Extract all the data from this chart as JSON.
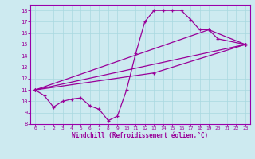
{
  "xlabel": "Windchill (Refroidissement éolien,°C)",
  "bg_color": "#cdeaf0",
  "grid_color": "#a8d8e0",
  "line_color": "#990099",
  "spine_color": "#9900aa",
  "xlim": [
    -0.5,
    23.5
  ],
  "ylim": [
    8,
    18.5
  ],
  "xticks": [
    0,
    1,
    2,
    3,
    4,
    5,
    6,
    7,
    8,
    9,
    10,
    11,
    12,
    13,
    14,
    15,
    16,
    17,
    18,
    19,
    20,
    21,
    22,
    23
  ],
  "yticks": [
    8,
    9,
    10,
    11,
    12,
    13,
    14,
    15,
    16,
    17,
    18
  ],
  "series": [
    {
      "x": [
        0,
        1,
        2,
        3,
        4,
        5,
        6,
        7,
        8,
        9,
        10,
        11,
        12,
        13,
        14,
        15,
        16,
        17,
        18,
        19,
        20,
        23
      ],
      "y": [
        11.0,
        10.5,
        9.5,
        10.0,
        10.2,
        10.3,
        9.6,
        9.3,
        8.3,
        8.7,
        11.0,
        14.2,
        17.0,
        18.0,
        18.0,
        18.0,
        18.0,
        17.2,
        16.3,
        16.3,
        15.5,
        15.0
      ]
    },
    {
      "x": [
        0,
        23
      ],
      "y": [
        11.0,
        15.0
      ]
    },
    {
      "x": [
        0,
        13,
        23
      ],
      "y": [
        11.0,
        12.5,
        15.0
      ]
    },
    {
      "x": [
        0,
        19,
        23
      ],
      "y": [
        11.0,
        16.3,
        15.0
      ]
    }
  ]
}
